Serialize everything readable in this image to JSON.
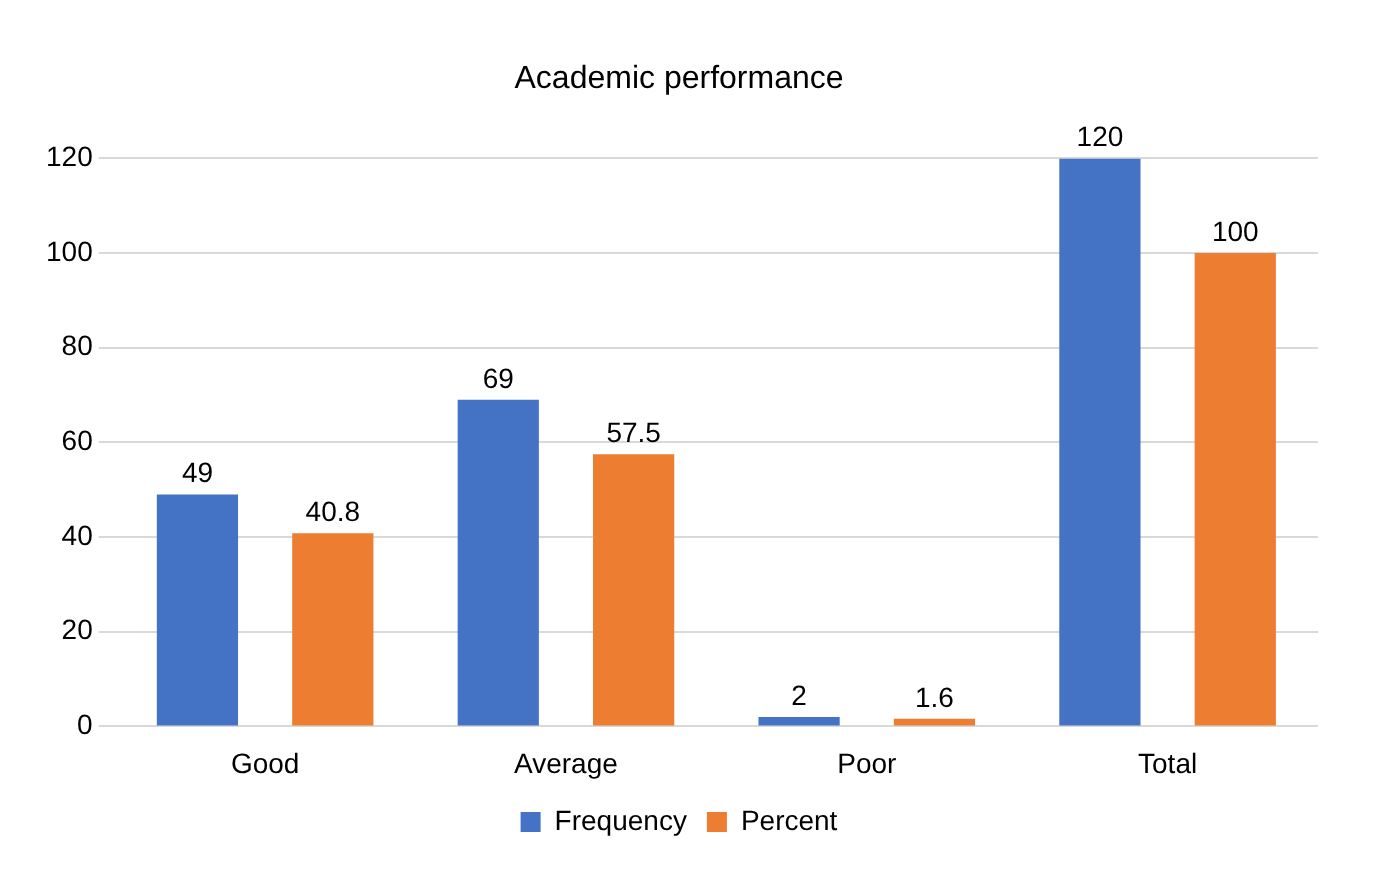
{
  "chart_data": {
    "type": "bar",
    "title": "Academic performance",
    "categories": [
      "Good",
      "Average",
      "Poor",
      "Total"
    ],
    "series": [
      {
        "name": "Frequency",
        "color": "#4472c4",
        "values": [
          49,
          69,
          2,
          120
        ]
      },
      {
        "name": "Percent",
        "color": "#ed7d31",
        "values": [
          40.8,
          57.5,
          1.6,
          100
        ]
      }
    ],
    "ylim": [
      0,
      120
    ],
    "yticks": [
      0,
      20,
      40,
      60,
      80,
      100,
      120
    ],
    "grid": "y",
    "legend": "bottom",
    "data_labels": true
  }
}
